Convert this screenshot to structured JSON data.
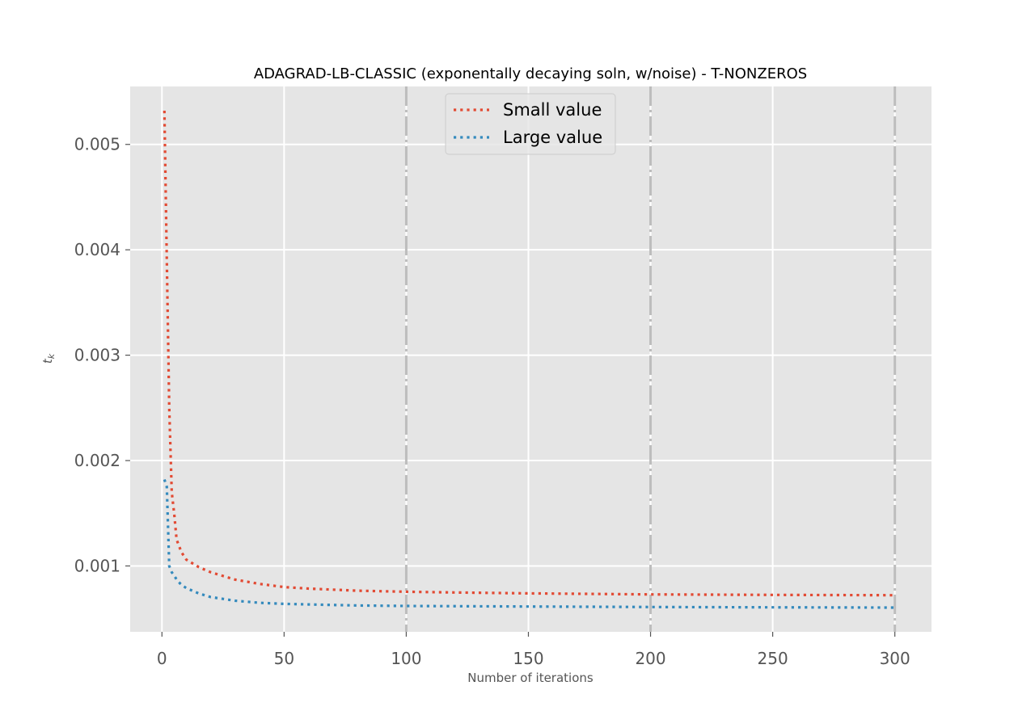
{
  "chart_data": {
    "type": "line",
    "title": "ADAGRAD-LB-CLASSIC (exponentally decaying soln, w/noise) - T-NONZEROS",
    "xlabel": "Number of iterations",
    "ylabel": "t_k",
    "xlim": [
      -13,
      315
    ],
    "ylim": [
      0.000375,
      0.00555
    ],
    "xticks": [
      0,
      50,
      100,
      150,
      200,
      250,
      300
    ],
    "xtick_labels": [
      "0",
      "50",
      "100",
      "150",
      "200",
      "250",
      "300"
    ],
    "yticks": [
      0.001,
      0.002,
      0.003,
      0.004,
      0.005
    ],
    "ytick_labels": [
      "0.001",
      "0.002",
      "0.003",
      "0.004",
      "0.005"
    ],
    "grid": true,
    "legend_position": "upper center",
    "vlines": [
      100,
      200,
      300
    ],
    "series": [
      {
        "name": "Small value",
        "color": "#E24A33",
        "style": "dotted",
        "x": [
          1,
          2,
          3,
          4,
          5,
          6,
          8,
          10,
          15,
          20,
          30,
          40,
          50,
          60,
          70,
          80,
          100,
          120,
          150,
          200,
          250,
          300
        ],
        "y": [
          0.00532,
          0.0039,
          0.0025,
          0.0017,
          0.0015,
          0.00125,
          0.00113,
          0.00106,
          0.00099,
          0.00094,
          0.00087,
          0.00083,
          0.0008,
          0.000785,
          0.000775,
          0.000765,
          0.000755,
          0.000748,
          0.00074,
          0.00073,
          0.000725,
          0.000722
        ]
      },
      {
        "name": "Large value",
        "color": "#348ABD",
        "style": "dotted",
        "x": [
          1,
          2,
          3,
          4,
          5,
          6,
          8,
          10,
          15,
          20,
          30,
          40,
          50,
          60,
          80,
          100,
          150,
          200,
          250,
          300
        ],
        "y": [
          0.00182,
          0.00175,
          0.001,
          0.00094,
          0.00091,
          0.00087,
          0.00082,
          0.00079,
          0.00074,
          0.000705,
          0.00067,
          0.00065,
          0.00064,
          0.000635,
          0.000625,
          0.00062,
          0.000615,
          0.00061,
          0.000607,
          0.000605
        ]
      }
    ]
  }
}
